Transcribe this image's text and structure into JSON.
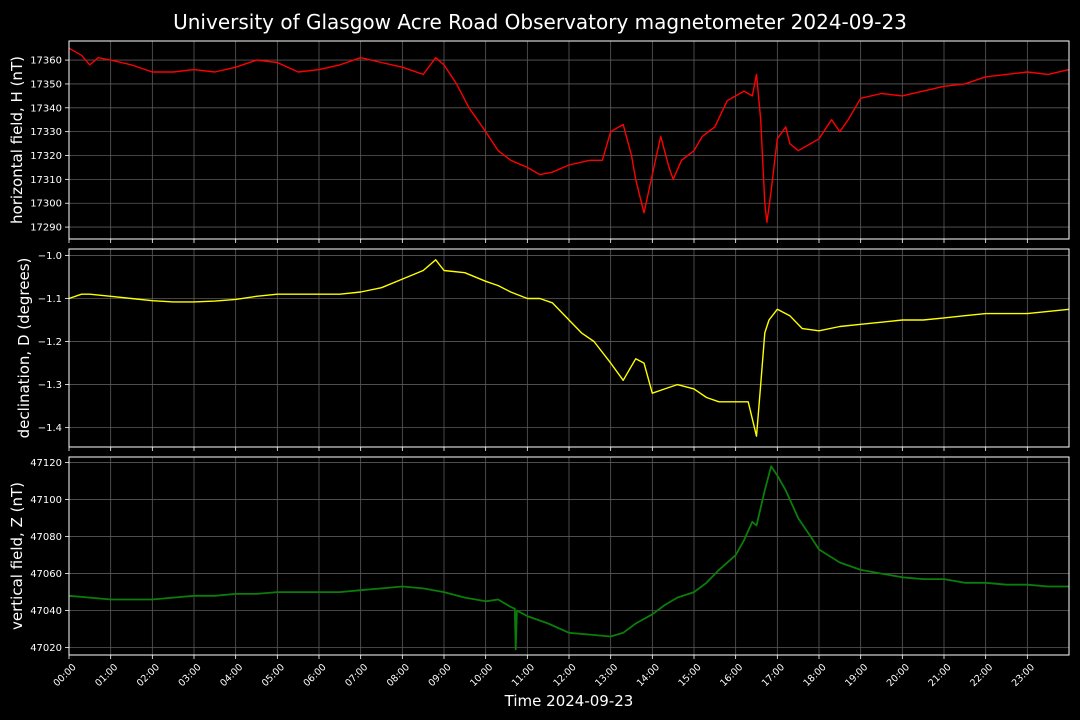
{
  "chart_data": {
    "type": "line",
    "title": "University of Glasgow Acre Road Observatory magnetometer 2024-09-23",
    "xlabel": "Time 2024-09-23",
    "x_ticks": [
      "00:00",
      "01:00",
      "02:00",
      "03:00",
      "04:00",
      "05:00",
      "06:00",
      "07:00",
      "08:00",
      "09:00",
      "10:00",
      "11:00",
      "12:00",
      "13:00",
      "14:00",
      "15:00",
      "16:00",
      "17:00",
      "18:00",
      "19:00",
      "20:00",
      "21:00",
      "22:00",
      "23:00"
    ],
    "xlim_hours": [
      0,
      24
    ],
    "grid": true,
    "background": "#000000",
    "panels": [
      {
        "ylabel": "horizontal field, H (nT)",
        "color": "#ff0000",
        "ylim": [
          17285,
          17368
        ],
        "y_ticks": [
          17290,
          17300,
          17310,
          17320,
          17330,
          17340,
          17350,
          17360
        ],
        "series": {
          "x_hours": [
            0,
            0.3,
            0.5,
            0.7,
            1,
            1.5,
            2,
            2.5,
            3,
            3.5,
            4,
            4.5,
            5,
            5.5,
            6,
            6.5,
            7,
            7.5,
            8,
            8.5,
            8.8,
            9,
            9.3,
            9.6,
            10,
            10.3,
            10.6,
            11,
            11.3,
            11.6,
            12,
            12.5,
            12.8,
            13,
            13.3,
            13.5,
            13.6,
            13.8,
            14,
            14.2,
            14.4,
            14.5,
            14.7,
            15,
            15.2,
            15.5,
            15.8,
            16,
            16.2,
            16.4,
            16.5,
            16.6,
            16.7,
            16.75,
            16.85,
            17,
            17.2,
            17.3,
            17.5,
            17.8,
            18,
            18.3,
            18.5,
            18.7,
            19,
            19.5,
            20,
            20.5,
            21,
            21.5,
            22,
            22.5,
            23,
            23.5,
            24
          ],
          "values": [
            17365,
            17362,
            17358,
            17361,
            17360,
            17358,
            17355,
            17355,
            17356,
            17355,
            17357,
            17360,
            17359,
            17355,
            17356,
            17358,
            17361,
            17359,
            17357,
            17354,
            17361,
            17358,
            17350,
            17340,
            17330,
            17322,
            17318,
            17315,
            17312,
            17313,
            17316,
            17318,
            17318,
            17330,
            17333,
            17320,
            17310,
            17296,
            17312,
            17328,
            17315,
            17310,
            17318,
            17322,
            17328,
            17332,
            17343,
            17345,
            17347,
            17345,
            17354,
            17335,
            17300,
            17292,
            17305,
            17327,
            17332,
            17325,
            17322,
            17325,
            17327,
            17335,
            17330,
            17335,
            17344,
            17346,
            17345,
            17347,
            17349,
            17350,
            17353,
            17354,
            17355,
            17354,
            17356
          ]
        }
      },
      {
        "ylabel": "declination, D (degrees)",
        "color": "#ffff00",
        "ylim": [
          -1.445,
          -0.985
        ],
        "y_ticks": [
          -1.0,
          -1.1,
          -1.2,
          -1.3,
          -1.4
        ],
        "y_tick_labels": [
          "−1.0",
          "−1.1",
          "−1.2",
          "−1.3",
          "−1.4"
        ],
        "series": {
          "x_hours": [
            0,
            0.3,
            0.5,
            1,
            1.5,
            2,
            2.5,
            3,
            3.5,
            4,
            4.5,
            5,
            5.5,
            6,
            6.5,
            7,
            7.5,
            8,
            8.5,
            8.8,
            9,
            9.5,
            10,
            10.3,
            10.6,
            11,
            11.3,
            11.6,
            12,
            12.3,
            12.6,
            13,
            13.3,
            13.6,
            13.8,
            14,
            14.3,
            14.6,
            15,
            15.3,
            15.6,
            16,
            16.3,
            16.5,
            16.6,
            16.7,
            16.8,
            17,
            17.3,
            17.6,
            18,
            18.5,
            19,
            19.5,
            20,
            20.5,
            21,
            21.5,
            22,
            22.5,
            23,
            23.5,
            24
          ],
          "values": [
            -1.1,
            -1.09,
            -1.09,
            -1.095,
            -1.1,
            -1.105,
            -1.108,
            -1.108,
            -1.106,
            -1.102,
            -1.095,
            -1.09,
            -1.09,
            -1.09,
            -1.09,
            -1.085,
            -1.075,
            -1.055,
            -1.035,
            -1.01,
            -1.035,
            -1.04,
            -1.06,
            -1.07,
            -1.085,
            -1.1,
            -1.1,
            -1.11,
            -1.15,
            -1.18,
            -1.2,
            -1.25,
            -1.29,
            -1.24,
            -1.25,
            -1.32,
            -1.31,
            -1.3,
            -1.31,
            -1.33,
            -1.34,
            -1.34,
            -1.34,
            -1.42,
            -1.3,
            -1.18,
            -1.15,
            -1.125,
            -1.14,
            -1.17,
            -1.175,
            -1.165,
            -1.16,
            -1.155,
            -1.15,
            -1.15,
            -1.145,
            -1.14,
            -1.135,
            -1.135,
            -1.135,
            -1.13,
            -1.125
          ]
        }
      },
      {
        "ylabel": "vertical field, Z (nT)",
        "color": "#0a7d0a",
        "ylim": [
          47016,
          47123
        ],
        "y_ticks": [
          47020,
          47040,
          47060,
          47080,
          47100,
          47120
        ],
        "series": {
          "x_hours": [
            0,
            0.5,
            1,
            1.5,
            2,
            2.5,
            3,
            3.5,
            4,
            4.5,
            5,
            5.5,
            6,
            6.5,
            7,
            7.5,
            8,
            8.5,
            9,
            9.5,
            10,
            10.3,
            10.6,
            10.7,
            10.72,
            10.75,
            11,
            11.5,
            12,
            12.5,
            13,
            13.3,
            13.6,
            14,
            14.3,
            14.6,
            15,
            15.3,
            15.6,
            16,
            16.2,
            16.4,
            16.5,
            16.7,
            16.85,
            17,
            17.2,
            17.5,
            17.8,
            18,
            18.5,
            19,
            19.5,
            20,
            20.5,
            21,
            21.5,
            22,
            22.5,
            23,
            23.5,
            24
          ],
          "values": [
            47048,
            47047,
            47046,
            47046,
            47046,
            47047,
            47048,
            47048,
            47049,
            47049,
            47050,
            47050,
            47050,
            47050,
            47051,
            47052,
            47053,
            47052,
            47050,
            47047,
            47045,
            47046,
            47042,
            47041,
            47019,
            47040,
            47037,
            47033,
            47028,
            47027,
            47026,
            47028,
            47033,
            47038,
            47043,
            47047,
            47050,
            47055,
            47062,
            47070,
            47078,
            47088,
            47086,
            47105,
            47118,
            47113,
            47105,
            47090,
            47080,
            47073,
            47066,
            47062,
            47060,
            47058,
            47057,
            47057,
            47055,
            47055,
            47054,
            47054,
            47053,
            47053
          ]
        }
      }
    ]
  }
}
